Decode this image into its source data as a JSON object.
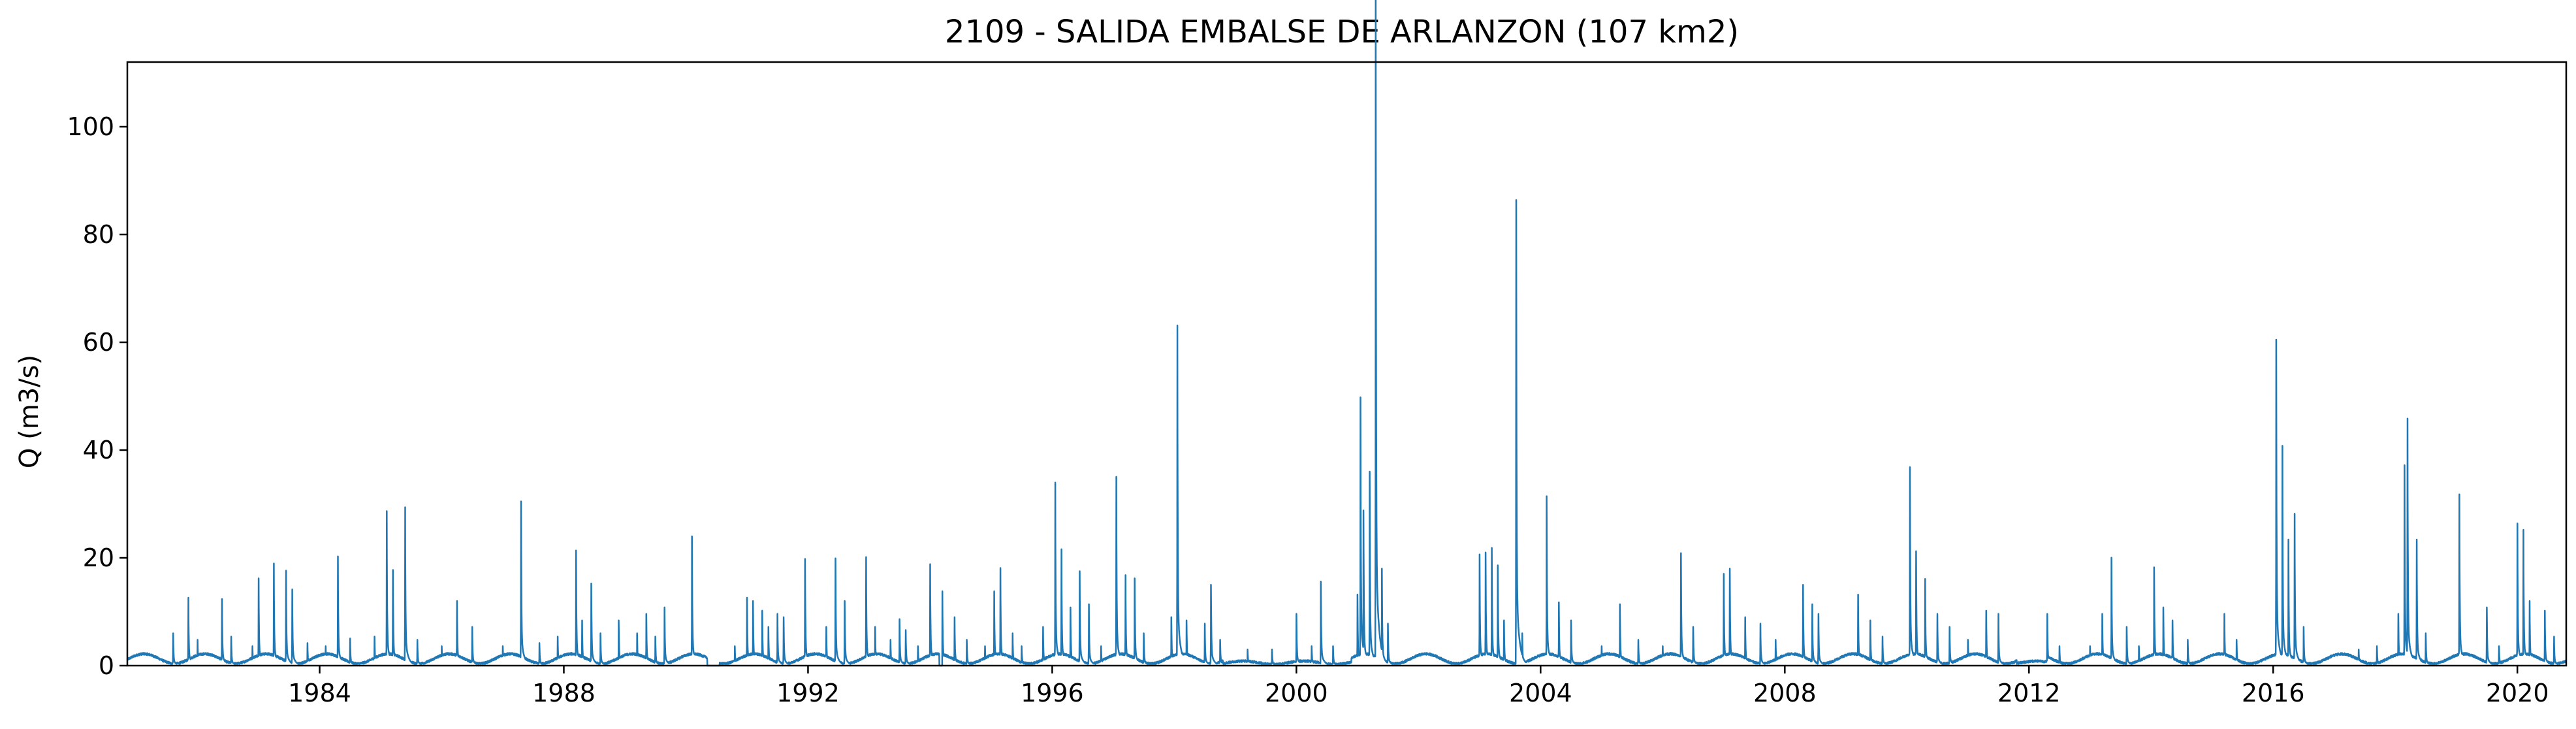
{
  "chart_data": {
    "type": "line",
    "title": "2109 - SALIDA EMBALSE DE ARLANZON (107 km2)",
    "xlabel": "",
    "ylabel": "Q (m3/s)",
    "xlim": [
      1980.85,
      2020.8
    ],
    "ylim": [
      0,
      112
    ],
    "x_ticks": [
      1984,
      1988,
      1992,
      1996,
      2000,
      2004,
      2008,
      2012,
      2016,
      2020
    ],
    "x_tick_labels": [
      "1984",
      "1988",
      "1992",
      "1996",
      "2000",
      "2004",
      "2008",
      "2012",
      "2016",
      "2020"
    ],
    "y_ticks": [
      0,
      20,
      40,
      60,
      80,
      100
    ],
    "y_tick_labels": [
      "0",
      "20",
      "40",
      "60",
      "80",
      "100"
    ],
    "grid": false,
    "legend": null,
    "series": [
      {
        "name": "Q",
        "color": "#1f77b4",
        "baseline": 1.8,
        "low_baseline": 0.6,
        "peaks": [
          [
            1981.6,
            5
          ],
          [
            1981.85,
            10.5
          ],
          [
            1982.0,
            4
          ],
          [
            1982.4,
            10.3
          ],
          [
            1982.55,
            4.5
          ],
          [
            1982.9,
            3
          ],
          [
            1983.0,
            13.5
          ],
          [
            1983.25,
            15.8
          ],
          [
            1983.45,
            14.7
          ],
          [
            1983.55,
            11.8
          ],
          [
            1983.8,
            3.5
          ],
          [
            1984.1,
            3
          ],
          [
            1984.3,
            16.9
          ],
          [
            1984.5,
            4.2
          ],
          [
            1984.9,
            4.5
          ],
          [
            1985.1,
            23.9
          ],
          [
            1985.2,
            14.8
          ],
          [
            1985.4,
            24.5
          ],
          [
            1985.6,
            4
          ],
          [
            1986.0,
            3
          ],
          [
            1986.25,
            10
          ],
          [
            1986.5,
            6
          ],
          [
            1987.0,
            3
          ],
          [
            1987.3,
            25.4
          ],
          [
            1987.6,
            3.5
          ],
          [
            1987.9,
            4.5
          ],
          [
            1988.2,
            17.8
          ],
          [
            1988.3,
            7
          ],
          [
            1988.45,
            12.7
          ],
          [
            1988.6,
            5
          ],
          [
            1988.9,
            7
          ],
          [
            1989.2,
            5
          ],
          [
            1989.35,
            8
          ],
          [
            1989.5,
            4.5
          ],
          [
            1989.65,
            9
          ],
          [
            1990.1,
            20
          ],
          [
            1990.3,
            1.5
          ],
          [
            1990.8,
            3
          ],
          [
            1991.0,
            10.5
          ],
          [
            1991.1,
            10
          ],
          [
            1991.25,
            8.5
          ],
          [
            1991.35,
            6
          ],
          [
            1991.5,
            8
          ],
          [
            1991.6,
            7.5
          ],
          [
            1991.95,
            16.5
          ],
          [
            1992.3,
            6
          ],
          [
            1992.45,
            16.6
          ],
          [
            1992.6,
            10
          ],
          [
            1992.95,
            16.8
          ],
          [
            1993.1,
            6
          ],
          [
            1993.35,
            4
          ],
          [
            1993.5,
            7.2
          ],
          [
            1993.6,
            5.5
          ],
          [
            1993.8,
            3
          ],
          [
            1994.0,
            15.7
          ],
          [
            1994.2,
            11.5
          ],
          [
            1994.4,
            7.5
          ],
          [
            1994.6,
            4
          ],
          [
            1994.9,
            3
          ],
          [
            1995.05,
            11.5
          ],
          [
            1995.15,
            15.1
          ],
          [
            1995.35,
            5
          ],
          [
            1995.5,
            3
          ],
          [
            1995.85,
            6
          ],
          [
            1996.05,
            28.3
          ],
          [
            1996.15,
            18
          ],
          [
            1996.3,
            9
          ],
          [
            1996.45,
            14.6
          ],
          [
            1996.6,
            9.5
          ],
          [
            1996.8,
            3
          ],
          [
            1997.05,
            29.2
          ],
          [
            1997.2,
            14
          ],
          [
            1997.35,
            13.5
          ],
          [
            1997.5,
            5
          ],
          [
            1997.95,
            7.5
          ],
          [
            1998.05,
            52.6
          ],
          [
            1998.2,
            7
          ],
          [
            1998.5,
            6.5
          ],
          [
            1998.6,
            12.5
          ],
          [
            1998.75,
            4
          ],
          [
            1999.2,
            2.5
          ],
          [
            1999.6,
            2.5
          ],
          [
            2000.0,
            8
          ],
          [
            2000.25,
            3
          ],
          [
            2000.4,
            13
          ],
          [
            2000.6,
            3
          ],
          [
            2001.0,
            11
          ],
          [
            2001.05,
            41.5
          ],
          [
            2001.1,
            24
          ],
          [
            2001.2,
            30
          ],
          [
            2001.3,
            107
          ],
          [
            2001.4,
            15
          ],
          [
            2001.5,
            6.5
          ],
          [
            2003.0,
            17.2
          ],
          [
            2003.1,
            17.5
          ],
          [
            2003.2,
            18.2
          ],
          [
            2003.3,
            15.5
          ],
          [
            2003.4,
            7
          ],
          [
            2003.6,
            72
          ],
          [
            2003.7,
            5
          ],
          [
            2004.1,
            26.2
          ],
          [
            2004.3,
            9.8
          ],
          [
            2004.5,
            7
          ],
          [
            2005.0,
            3
          ],
          [
            2005.3,
            9.5
          ],
          [
            2005.6,
            4
          ],
          [
            2006.0,
            3
          ],
          [
            2006.3,
            17.4
          ],
          [
            2006.5,
            6
          ],
          [
            2007.0,
            14.2
          ],
          [
            2007.1,
            15
          ],
          [
            2007.35,
            7.5
          ],
          [
            2007.6,
            6.5
          ],
          [
            2007.85,
            4
          ],
          [
            2008.3,
            12.5
          ],
          [
            2008.45,
            9.5
          ],
          [
            2008.55,
            8
          ],
          [
            2009.2,
            11
          ],
          [
            2009.4,
            7
          ],
          [
            2009.6,
            4.5
          ],
          [
            2010.05,
            30.7
          ],
          [
            2010.15,
            17.7
          ],
          [
            2010.3,
            13.4
          ],
          [
            2010.5,
            8
          ],
          [
            2010.7,
            6
          ],
          [
            2011.0,
            4
          ],
          [
            2011.3,
            8.5
          ],
          [
            2011.5,
            8
          ],
          [
            2012.3,
            8
          ],
          [
            2012.5,
            3
          ],
          [
            2013.0,
            3
          ],
          [
            2013.2,
            8
          ],
          [
            2013.35,
            16.7
          ],
          [
            2013.6,
            6
          ],
          [
            2013.8,
            3
          ],
          [
            2014.05,
            15.2
          ],
          [
            2014.2,
            9
          ],
          [
            2014.35,
            7
          ],
          [
            2014.6,
            4
          ],
          [
            2015.2,
            8
          ],
          [
            2015.4,
            4
          ],
          [
            2016.05,
            50.4
          ],
          [
            2016.15,
            34
          ],
          [
            2016.25,
            19.5
          ],
          [
            2016.35,
            23.5
          ],
          [
            2016.5,
            6
          ],
          [
            2017.4,
            2.5
          ],
          [
            2017.7,
            3
          ],
          [
            2018.05,
            8
          ],
          [
            2018.15,
            31
          ],
          [
            2018.2,
            38.2
          ],
          [
            2018.35,
            19.5
          ],
          [
            2018.5,
            5
          ],
          [
            2019.05,
            26.5
          ],
          [
            2019.5,
            9
          ],
          [
            2019.7,
            3
          ],
          [
            2020.0,
            22
          ],
          [
            2020.1,
            21
          ],
          [
            2020.2,
            10
          ],
          [
            2020.45,
            8.5
          ],
          [
            2020.6,
            4.5
          ]
        ]
      }
    ]
  }
}
